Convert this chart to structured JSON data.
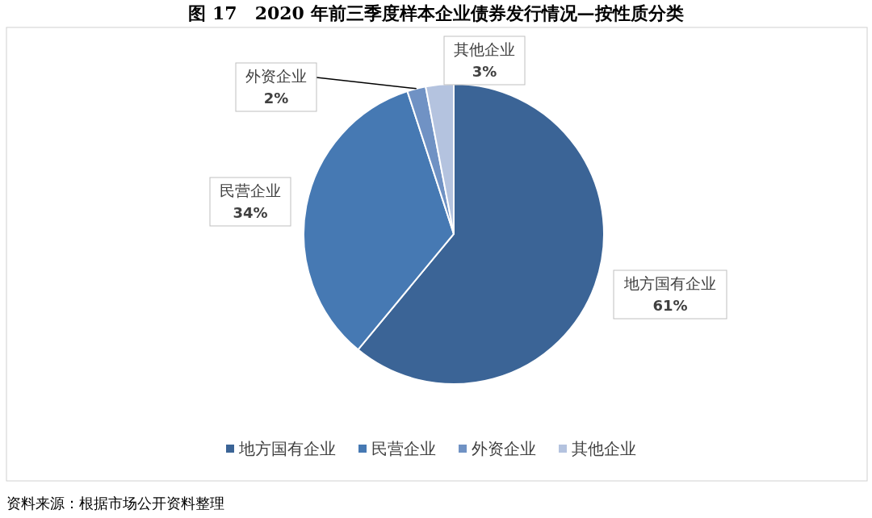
{
  "chart_data": {
    "type": "pie",
    "title": "图 17　2020 年前三季度样本企业债券发行情况—按性质分类",
    "categories": [
      "地方国有企业",
      "民营企业",
      "外资企业",
      "其他企业"
    ],
    "values": [
      61,
      34,
      2,
      3
    ],
    "value_labels": [
      "61%",
      "34%",
      "2%",
      "3%"
    ],
    "colors": [
      "#3b6496",
      "#4679b3",
      "#7092c4",
      "#b4c3df"
    ],
    "legend": "bottom",
    "annotations": [
      "资料来源：根据市场公开资料整理"
    ]
  }
}
